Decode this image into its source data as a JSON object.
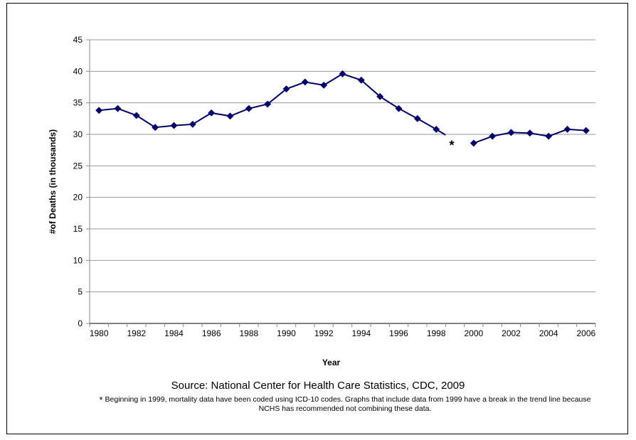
{
  "chart_data": {
    "type": "line",
    "title": "",
    "xlabel": "Year",
    "ylabel": "#of Deaths (in thousands)",
    "ylim": [
      0,
      45
    ],
    "yticks": [
      0,
      5,
      10,
      15,
      20,
      25,
      30,
      35,
      40,
      45
    ],
    "xtick_labels": [
      "1980",
      "1982",
      "1984",
      "1986",
      "1988",
      "1990",
      "1992",
      "1994",
      "1996",
      "1998",
      "2000",
      "2002",
      "2004",
      "2006"
    ],
    "grid": "horizontal",
    "line_color": "#000066",
    "break_marker": "*",
    "break_year": 1999,
    "series": [
      {
        "x": [
          1980,
          1981,
          1982,
          1983,
          1984,
          1985,
          1986,
          1987,
          1988,
          1989,
          1990,
          1991,
          1992,
          1993,
          1994,
          1995,
          1996,
          1997,
          1998
        ],
        "values": [
          33.8,
          34.1,
          33.0,
          31.1,
          31.4,
          31.6,
          33.4,
          32.9,
          34.1,
          34.8,
          37.2,
          38.3,
          37.8,
          39.6,
          38.6,
          36.0,
          34.1,
          32.5,
          30.8
        ]
      },
      {
        "x": [
          2000,
          2001,
          2002,
          2003,
          2004,
          2005,
          2006
        ],
        "values": [
          28.6,
          29.7,
          30.3,
          30.2,
          29.7,
          30.8,
          30.6
        ]
      }
    ]
  },
  "source": "Source: National Center for Health Care Statistics, CDC, 2009",
  "footnote_marker": "*",
  "footnote": "Beginning in 1999, mortality data have been coded using ICD-10 codes. Graphs that include data from 1999 have a break in the trend line because NCHS has recommended not combining these data."
}
